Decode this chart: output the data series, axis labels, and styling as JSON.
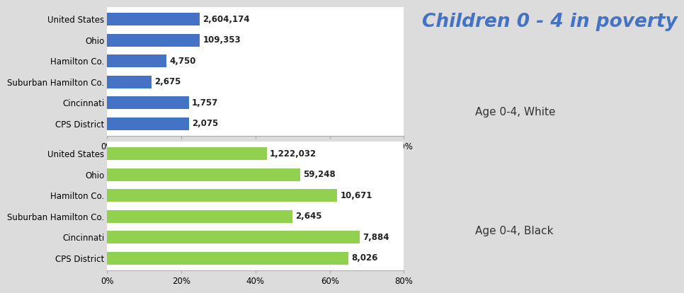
{
  "title": "Children 0 - 4 in poverty",
  "title_color": "#4472C4",
  "title_fontsize": 19,
  "categories": [
    "United States",
    "Ohio",
    "Hamilton Co.",
    "Suburban Hamilton Co.",
    "Cincinnati",
    "CPS District"
  ],
  "white_values": [
    25,
    25,
    16,
    12,
    22,
    22
  ],
  "white_labels": [
    "2,604,174",
    "109,353",
    "4,750",
    "2,675",
    "1,757",
    "2,075"
  ],
  "white_bar_color": "#4472C4",
  "white_subtitle": "Age 0-4, White",
  "black_values": [
    43,
    52,
    62,
    50,
    68,
    65
  ],
  "black_labels": [
    "1,222,032",
    "59,248",
    "10,671",
    "2,645",
    "7,884",
    "8,026"
  ],
  "black_bar_color": "#92D050",
  "black_subtitle": "Age 0-4, Black",
  "xlim": [
    0,
    80
  ],
  "xticks": [
    0,
    20,
    40,
    60,
    80
  ],
  "xticklabels": [
    "0%",
    "20%",
    "40%",
    "60%",
    "80%"
  ],
  "background_color": "#DCDCDC",
  "plot_bg_color": "#FFFFFF",
  "label_fontsize": 8.5,
  "tick_fontsize": 8.5,
  "bar_height": 0.6,
  "fig_width": 10.1,
  "fig_height": 4.0
}
